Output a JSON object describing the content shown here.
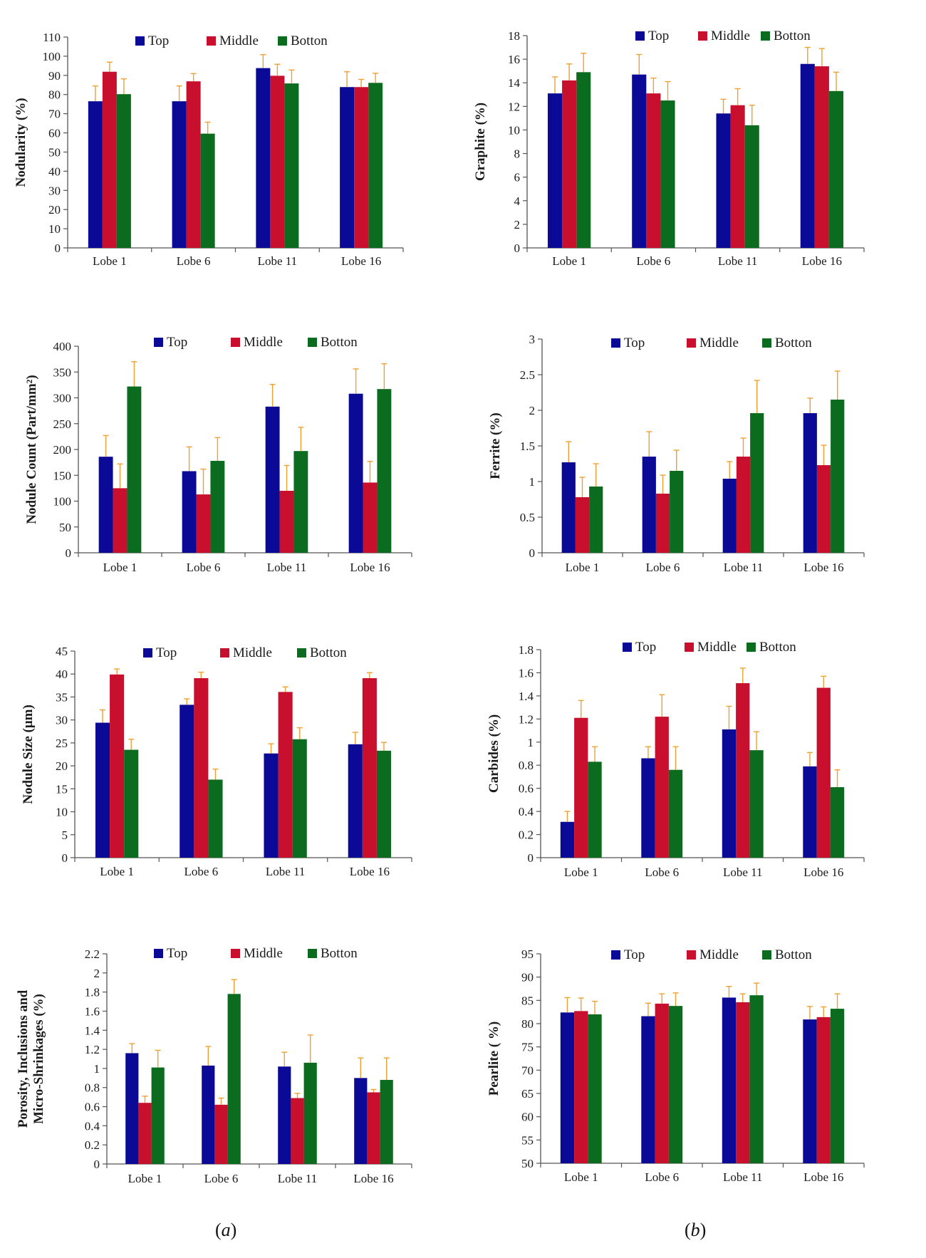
{
  "captions": {
    "left": "(a)",
    "right": "(b)",
    "left_letter": "a",
    "right_letter": "b"
  },
  "colors": {
    "Top": "#0a0a96",
    "Middle": "#c8102e",
    "Botton": "#0b6b1e",
    "error": "#f0a030",
    "axis": "#555555"
  },
  "chart_data": [
    {
      "id": "nodularity",
      "type": "bar",
      "title": "",
      "ylabel": "Nodularity (%)",
      "xlabel": "",
      "ylim": [
        0,
        110
      ],
      "yticks": [
        0,
        10,
        20,
        30,
        40,
        50,
        60,
        70,
        80,
        90,
        100,
        110
      ],
      "categories": [
        "Lobe 1",
        "Lobe 6",
        "Lobe 11",
        "Lobe 16"
      ],
      "legend": [
        "Top",
        "Middle",
        "Botton"
      ],
      "series": [
        {
          "name": "Top",
          "values": [
            76.5,
            76.5,
            93.8,
            83.9
          ],
          "errors": [
            8,
            8,
            7,
            8
          ]
        },
        {
          "name": "Middle",
          "values": [
            91.9,
            86.9,
            89.8,
            83.9
          ],
          "errors": [
            5,
            4,
            6,
            4
          ]
        },
        {
          "name": "Botton",
          "values": [
            80.2,
            59.6,
            85.8,
            86.1
          ],
          "errors": [
            8,
            6,
            7,
            5
          ]
        }
      ]
    },
    {
      "id": "graphite",
      "type": "bar",
      "title": "",
      "ylabel": "Graphite (%)",
      "xlabel": "",
      "ylim": [
        0,
        18
      ],
      "yticks": [
        0,
        2,
        4,
        6,
        8,
        10,
        12,
        14,
        16,
        18
      ],
      "categories": [
        "Lobe 1",
        "Lobe 6",
        "Lobe 11",
        "Lobe 16"
      ],
      "legend": [
        "Top",
        "Middle",
        "Botton"
      ],
      "series": [
        {
          "name": "Top",
          "values": [
            13.1,
            14.7,
            11.4,
            15.6
          ],
          "errors": [
            1.4,
            1.7,
            1.2,
            1.4
          ]
        },
        {
          "name": "Middle",
          "values": [
            14.2,
            13.1,
            12.1,
            15.4
          ],
          "errors": [
            1.4,
            1.3,
            1.4,
            1.5
          ]
        },
        {
          "name": "Botton",
          "values": [
            14.9,
            12.5,
            10.4,
            13.3
          ],
          "errors": [
            1.6,
            1.6,
            1.7,
            1.6
          ]
        }
      ]
    },
    {
      "id": "nodule_count",
      "type": "bar",
      "title": "",
      "ylabel": "Nodule Count (Part/mm²)",
      "xlabel": "",
      "ylim": [
        0,
        400
      ],
      "yticks": [
        0,
        50,
        100,
        150,
        200,
        250,
        300,
        350,
        400
      ],
      "categories": [
        "Lobe 1",
        "Lobe 6",
        "Lobe 11",
        "Lobe 16"
      ],
      "legend": [
        "Top",
        "Middle",
        "Botton"
      ],
      "series": [
        {
          "name": "Top",
          "values": [
            186,
            158,
            283,
            308
          ],
          "errors": [
            41,
            47,
            43,
            48
          ]
        },
        {
          "name": "Middle",
          "values": [
            125,
            113,
            120,
            136
          ],
          "errors": [
            47,
            49,
            49,
            41
          ]
        },
        {
          "name": "Botton",
          "values": [
            322,
            178,
            197,
            317
          ],
          "errors": [
            48,
            45,
            46,
            49
          ]
        }
      ]
    },
    {
      "id": "ferrite",
      "type": "bar",
      "title": "",
      "ylabel": "Ferrite (%)",
      "xlabel": "",
      "ylim": [
        0,
        3
      ],
      "yticks": [
        0,
        0.5,
        1,
        1.5,
        2,
        2.5,
        3
      ],
      "categories": [
        "Lobe 1",
        "Lobe 6",
        "Lobe 11",
        "Lobe 16"
      ],
      "legend": [
        "Top",
        "Middle",
        "Botton"
      ],
      "series": [
        {
          "name": "Top",
          "values": [
            1.27,
            1.35,
            1.04,
            1.96
          ],
          "errors": [
            0.29,
            0.35,
            0.24,
            0.21
          ]
        },
        {
          "name": "Middle",
          "values": [
            0.78,
            0.83,
            1.35,
            1.23
          ],
          "errors": [
            0.28,
            0.26,
            0.26,
            0.28
          ]
        },
        {
          "name": "Botton",
          "values": [
            0.93,
            1.15,
            1.96,
            2.15
          ],
          "errors": [
            0.32,
            0.29,
            0.46,
            0.4
          ]
        }
      ]
    },
    {
      "id": "nodule_size",
      "type": "bar",
      "title": "",
      "ylabel": "Nodule Size (μm)",
      "xlabel": "",
      "ylim": [
        0,
        45
      ],
      "yticks": [
        0,
        5,
        10,
        15,
        20,
        25,
        30,
        35,
        40,
        45
      ],
      "categories": [
        "Lobe 1",
        "Lobe 6",
        "Lobe 11",
        "Lobe 16"
      ],
      "legend": [
        "Top",
        "Middle",
        "Botton"
      ],
      "series": [
        {
          "name": "Top",
          "values": [
            29.4,
            33.3,
            22.7,
            24.7
          ],
          "errors": [
            2.8,
            1.3,
            2.1,
            2.6
          ]
        },
        {
          "name": "Middle",
          "values": [
            39.9,
            39.1,
            36.1,
            39.1
          ],
          "errors": [
            1.2,
            1.3,
            1.1,
            1.2
          ]
        },
        {
          "name": "Botton",
          "values": [
            23.5,
            17.0,
            25.8,
            23.3
          ],
          "errors": [
            2.3,
            2.3,
            2.5,
            1.8
          ]
        }
      ]
    },
    {
      "id": "carbides",
      "type": "bar",
      "title": "",
      "ylabel": "Carbides (%)",
      "xlabel": "",
      "ylim": [
        0,
        1.8
      ],
      "yticks": [
        0,
        0.2,
        0.4,
        0.6,
        0.8,
        1,
        1.2,
        1.4,
        1.6,
        1.8
      ],
      "categories": [
        "Lobe 1",
        "Lobe 6",
        "Lobe 11",
        "Lobe 16"
      ],
      "legend": [
        "Top",
        "Middle",
        "Botton"
      ],
      "series": [
        {
          "name": "Top",
          "values": [
            0.31,
            0.86,
            1.11,
            0.79
          ],
          "errors": [
            0.09,
            0.1,
            0.2,
            0.12
          ]
        },
        {
          "name": "Middle",
          "values": [
            1.21,
            1.22,
            1.51,
            1.47
          ],
          "errors": [
            0.15,
            0.19,
            0.13,
            0.1
          ]
        },
        {
          "name": "Botton",
          "values": [
            0.83,
            0.76,
            0.93,
            0.61
          ],
          "errors": [
            0.13,
            0.2,
            0.16,
            0.15
          ]
        }
      ]
    },
    {
      "id": "porosity",
      "type": "bar",
      "title": "",
      "ylabel": "Porosity, Inclusions and Micro-Shrinkages (%)",
      "ylabel_lines": [
        "Porosity, Inclusions and",
        "Micro-Shrinkages (%)"
      ],
      "xlabel": "",
      "ylim": [
        0,
        2.2
      ],
      "yticks": [
        0,
        0.2,
        0.4,
        0.6,
        0.8,
        1,
        1.2,
        1.4,
        1.6,
        1.8,
        2,
        2.2
      ],
      "categories": [
        "Lobe 1",
        "Lobe 6",
        "Lobe 11",
        "Lobe 16"
      ],
      "legend": [
        "Top",
        "Middle",
        "Botton"
      ],
      "series": [
        {
          "name": "Top",
          "values": [
            1.16,
            1.03,
            1.02,
            0.9
          ],
          "errors": [
            0.1,
            0.2,
            0.15,
            0.21
          ]
        },
        {
          "name": "Middle",
          "values": [
            0.64,
            0.62,
            0.69,
            0.75
          ],
          "errors": [
            0.07,
            0.07,
            0.05,
            0.03
          ]
        },
        {
          "name": "Botton",
          "values": [
            1.01,
            1.78,
            1.06,
            0.88
          ],
          "errors": [
            0.18,
            0.15,
            0.29,
            0.23
          ]
        }
      ]
    },
    {
      "id": "pearlite",
      "type": "bar",
      "title": "",
      "ylabel": "Pearlite ( %)",
      "xlabel": "",
      "ylim": [
        50,
        95
      ],
      "yticks": [
        50,
        55,
        60,
        65,
        70,
        75,
        80,
        85,
        90,
        95
      ],
      "categories": [
        "Lobe 1",
        "Lobe 6",
        "Lobe 11",
        "Lobe 16"
      ],
      "legend": [
        "Top",
        "Middle",
        "Botton"
      ],
      "series": [
        {
          "name": "Top",
          "values": [
            82.4,
            81.6,
            85.6,
            80.9
          ],
          "errors": [
            3.2,
            2.8,
            2.4,
            2.8
          ]
        },
        {
          "name": "Middle",
          "values": [
            82.7,
            84.3,
            84.6,
            81.4
          ],
          "errors": [
            2.8,
            2.1,
            1.8,
            2.2
          ]
        },
        {
          "name": "Botton",
          "values": [
            82.0,
            83.8,
            86.1,
            83.2
          ],
          "errors": [
            2.8,
            2.8,
            2.6,
            3.2
          ]
        }
      ]
    }
  ]
}
